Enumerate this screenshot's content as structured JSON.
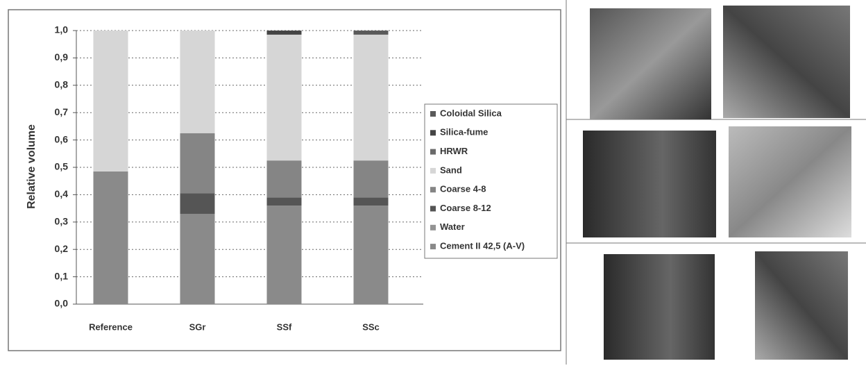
{
  "chart_data": {
    "type": "stacked_bar",
    "y_label": "Relative volume",
    "categories": [
      "Reference",
      "SGr",
      "SSf",
      "SSc"
    ],
    "series": [
      {
        "name": "Cement II  42,5 (A-V)",
        "color": "#8a8a8a",
        "values": [
          0.485,
          0.33,
          0.36,
          0.36
        ]
      },
      {
        "name": "Water",
        "color": "#939393",
        "values": [
          0,
          0,
          0,
          0
        ]
      },
      {
        "name": "Coarse 8-12",
        "color": "#555555",
        "values": [
          0,
          0.075,
          0.03,
          0.03
        ]
      },
      {
        "name": "Coarse 4-8",
        "color": "#858585",
        "values": [
          0,
          0.22,
          0.135,
          0.135
        ]
      },
      {
        "name": "Sand",
        "color": "#d6d6d6",
        "values": [
          0.515,
          0.375,
          0.46,
          0.46
        ]
      },
      {
        "name": "HRWR",
        "color": "#6a6a6a",
        "values": [
          0,
          0,
          0,
          0
        ]
      },
      {
        "name": "Silica-fume",
        "color": "#454545",
        "values": [
          0,
          0,
          0.015,
          0
        ]
      },
      {
        "name": "Coloidal Silica",
        "color": "#5a5a5a",
        "values": [
          0,
          0,
          0,
          0.015
        ]
      }
    ],
    "ylim": [
      0,
      1
    ],
    "yticks": [
      {
        "value": 0,
        "label": "0,0"
      },
      {
        "value": 0.1,
        "label": "0,1"
      },
      {
        "value": 0.2,
        "label": "0,2"
      },
      {
        "value": 0.3,
        "label": "0,3"
      },
      {
        "value": 0.4,
        "label": "0,4"
      },
      {
        "value": 0.5,
        "label": "0,5"
      },
      {
        "value": 0.6,
        "label": "0,6"
      },
      {
        "value": 0.7,
        "label": "0,7"
      },
      {
        "value": 0.8,
        "label": "0,8"
      },
      {
        "value": 0.9,
        "label": "0,9"
      },
      {
        "value": 1,
        "label": "1,0"
      }
    ],
    "grid": true,
    "legend_position": "right"
  }
}
